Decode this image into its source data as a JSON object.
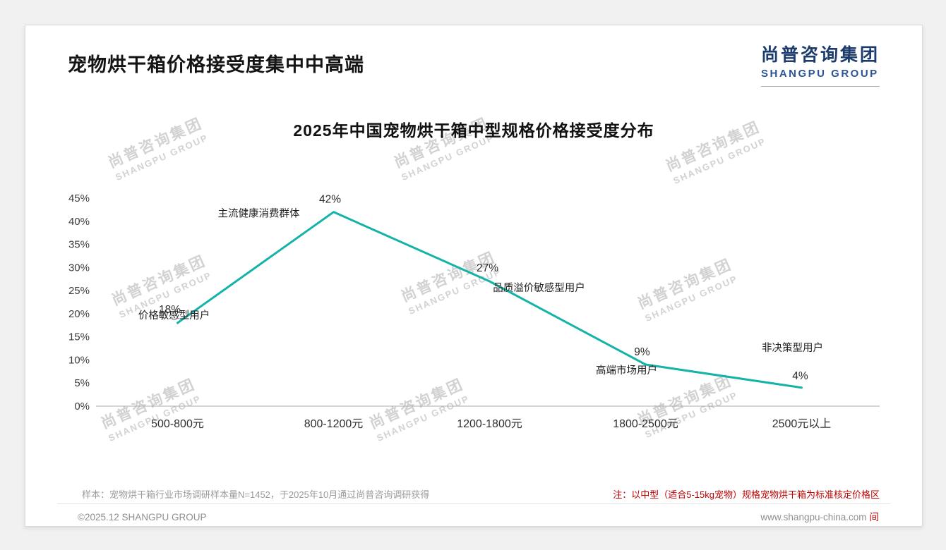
{
  "header": {
    "title": "宠物烘干箱价格接受度集中中高端",
    "logo_cn": "尚普咨询集团",
    "logo_en": "SHANGPU GROUP"
  },
  "watermark": {
    "cn": "尚普咨询集团",
    "en": "SHANGPU GROUP"
  },
  "chart_data": {
    "type": "line",
    "title": "2025年中国宠物烘干箱中型规格价格接受度分布",
    "categories": [
      "500-800元",
      "800-1200元",
      "1200-1800元",
      "1800-2500元",
      "2500元以上"
    ],
    "values": [
      18,
      42,
      27,
      9,
      4
    ],
    "labels": [
      "18%",
      "42%",
      "27%",
      "9%",
      "4%"
    ],
    "annotations": [
      "价格敏感型用户",
      "主流健康消费群体",
      "品质溢价敏感型用户",
      "高端市场用户",
      "非决策型用户"
    ],
    "xlabel": "",
    "ylabel": "",
    "ylim": [
      0,
      45
    ],
    "ytick_step": 5,
    "yticks": [
      "45%",
      "40%",
      "35%",
      "30%",
      "25%",
      "20%",
      "15%",
      "10%",
      "5%",
      "0%"
    ],
    "line_color": "#13b3a8",
    "grid": false,
    "legend": "none"
  },
  "footer": {
    "sample_note": "样本：宠物烘干箱行业市场调研样本量N=1452，于2025年10月通过尚普咨询调研获得",
    "price_note": "注：以中型（适合5-15kg宠物）规格宠物烘干箱为标准核定价格区",
    "copyright": "©2025.12 SHANGPU GROUP",
    "website": "www.shangpu-china.com",
    "website_mark": "间"
  }
}
